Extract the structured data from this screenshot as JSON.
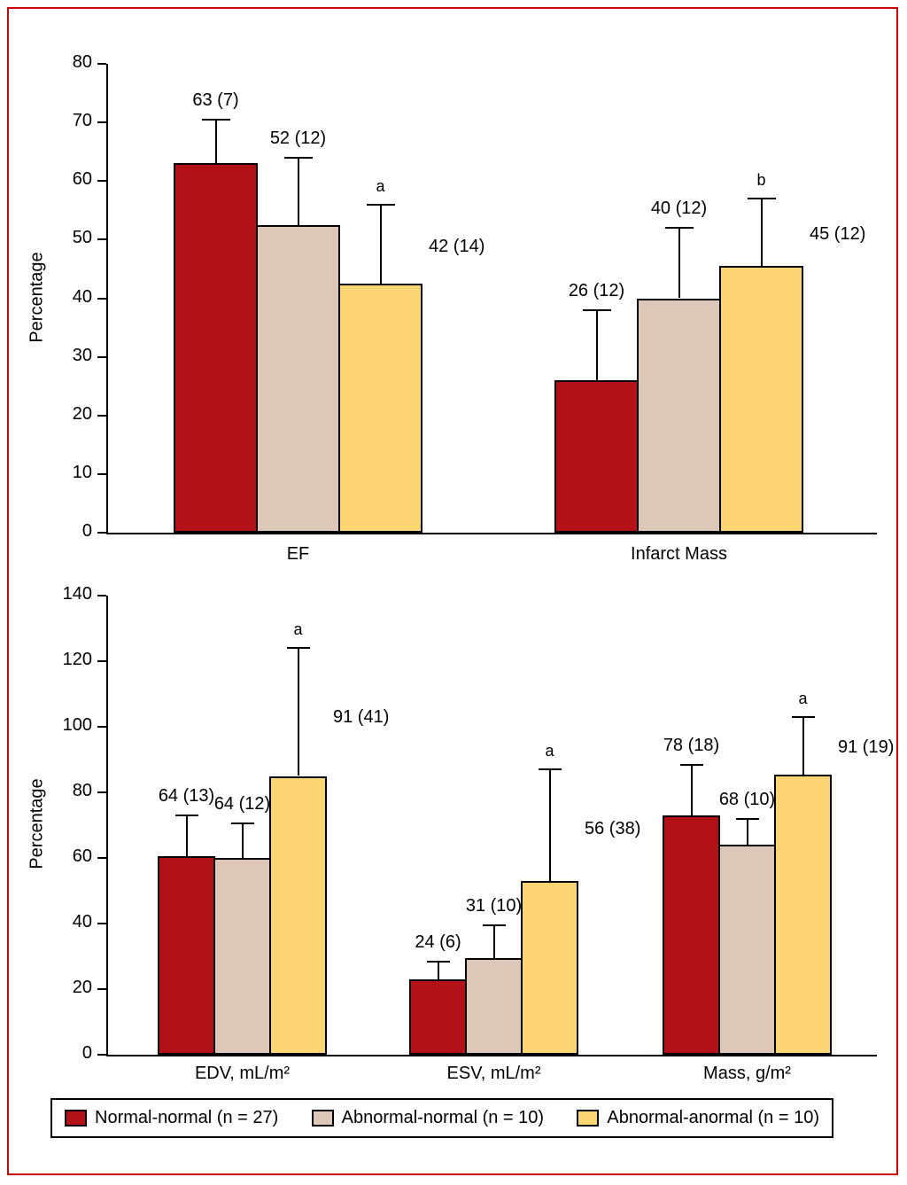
{
  "figure": {
    "border_color": "#cc0000",
    "background": "#ffffff"
  },
  "legend": {
    "items": [
      {
        "label": "Normal-normal (n = 27)",
        "color": "#b21118"
      },
      {
        "label": "Abnormal-normal (n = 10)",
        "color": "#dcc7b9"
      },
      {
        "label": "Abnormal-anormal (n = 10)",
        "color": "#fcd673"
      }
    ]
  },
  "chart_data": [
    {
      "type": "bar",
      "title": "",
      "ylabel": "Percentage",
      "xlabel": "",
      "ylim": [
        0,
        80
      ],
      "yticks": [
        0,
        10,
        20,
        30,
        40,
        50,
        60,
        70,
        80
      ],
      "grid": false,
      "legend_position": "shared-bottom",
      "categories": [
        "EF",
        "Infarct Mass"
      ],
      "series": [
        {
          "name": "Normal-normal (n = 27)",
          "color": "#b21118",
          "means": [
            63,
            26
          ],
          "sds": [
            7,
            12
          ],
          "annotations": [
            "63 (7)",
            "26 (12)"
          ],
          "sig": [
            "",
            ""
          ],
          "bar_values": [
            63,
            26
          ],
          "error_tops": [
            70.5,
            38
          ]
        },
        {
          "name": "Abnormal-normal (n = 10)",
          "color": "#dcc7b9",
          "means": [
            52,
            40
          ],
          "sds": [
            12,
            12
          ],
          "annotations": [
            "52 (12)",
            "40 (12)"
          ],
          "sig": [
            "",
            ""
          ],
          "bar_values": [
            52.5,
            40
          ],
          "error_tops": [
            64,
            52
          ]
        },
        {
          "name": "Abnormal-anormal (n = 10)",
          "color": "#fcd673",
          "means": [
            42,
            45
          ],
          "sds": [
            14,
            12
          ],
          "annotations": [
            "42 (14)",
            "45 (12)"
          ],
          "sig": [
            "a",
            "b"
          ],
          "bar_values": [
            42.5,
            45.5
          ],
          "error_tops": [
            56,
            57
          ]
        }
      ]
    },
    {
      "type": "bar",
      "title": "",
      "ylabel": "Percentage",
      "xlabel": "",
      "ylim": [
        0,
        140
      ],
      "yticks": [
        0,
        20,
        40,
        60,
        80,
        100,
        120,
        140
      ],
      "grid": false,
      "legend_position": "shared-bottom",
      "categories": [
        "EDV, mL/m²",
        "ESV, mL/m²",
        "Mass, g/m²"
      ],
      "series": [
        {
          "name": "Normal-normal (n = 27)",
          "color": "#b21118",
          "means": [
            64,
            24,
            78
          ],
          "sds": [
            13,
            6,
            18
          ],
          "annotations": [
            "64 (13)",
            "24 (6)",
            "78 (18)"
          ],
          "sig": [
            "",
            "",
            ""
          ],
          "bar_values": [
            60.5,
            23,
            73
          ],
          "error_tops": [
            73,
            28.5,
            88.5
          ]
        },
        {
          "name": "Abnormal-normal (n = 10)",
          "color": "#dcc7b9",
          "means": [
            64,
            31,
            68
          ],
          "sds": [
            12,
            10,
            10
          ],
          "annotations": [
            "64 (12)",
            "31 (10)",
            "68 (10)"
          ],
          "sig": [
            "",
            "",
            ""
          ],
          "bar_values": [
            60,
            29.5,
            64
          ],
          "error_tops": [
            70.5,
            39.5,
            72
          ]
        },
        {
          "name": "Abnormal-anormal (n = 10)",
          "color": "#fcd673",
          "means": [
            91,
            56,
            91
          ],
          "sds": [
            41,
            38,
            19
          ],
          "annotations": [
            "91 (41)",
            "56 (38)",
            "91 (19)"
          ],
          "sig": [
            "a",
            "a",
            "a"
          ],
          "bar_values": [
            85,
            53,
            85.5
          ],
          "error_tops": [
            124,
            87,
            103
          ]
        }
      ]
    }
  ]
}
